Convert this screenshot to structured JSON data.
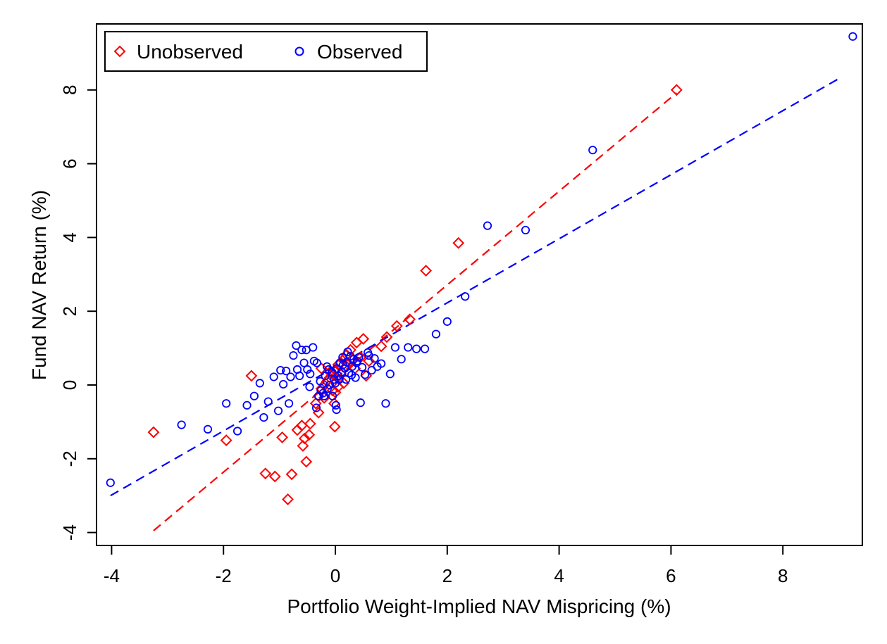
{
  "chart_data": {
    "type": "scatter",
    "title": "",
    "xlabel": "Portfolio Weight-Implied NAV Mispricing (%)",
    "ylabel": "Fund NAV Return (%)",
    "xlim": [
      -4.3,
      9.5
    ],
    "ylim": [
      -4.35,
      9.75
    ],
    "x_ticks": [
      -4,
      -2,
      0,
      2,
      4,
      6,
      8
    ],
    "y_ticks": [
      -4,
      -2,
      0,
      2,
      4,
      6,
      8
    ],
    "x_tick_labels": [
      "-4",
      "-2",
      "0",
      "2",
      "4",
      "6",
      "8"
    ],
    "y_tick_labels": [
      "-4",
      "-2",
      "0",
      "2",
      "4",
      "6",
      "8"
    ],
    "grid": false,
    "legend": {
      "placement": "top-left",
      "entries": [
        "Unobserved",
        "Observed"
      ]
    },
    "series": [
      {
        "name": "Unobserved",
        "color": "#ff0000",
        "marker": "diamond",
        "points": [
          [
            6.1,
            8.0
          ],
          [
            2.2,
            3.85
          ],
          [
            1.62,
            3.1
          ],
          [
            1.33,
            1.78
          ],
          [
            1.1,
            1.6
          ],
          [
            0.92,
            1.3
          ],
          [
            0.82,
            1.05
          ],
          [
            0.5,
            1.25
          ],
          [
            0.38,
            1.15
          ],
          [
            0.27,
            0.95
          ],
          [
            0.2,
            0.82
          ],
          [
            0.15,
            0.7
          ],
          [
            0.1,
            0.6
          ],
          [
            0.05,
            0.55
          ],
          [
            0.0,
            0.4
          ],
          [
            -0.05,
            0.3
          ],
          [
            -0.1,
            0.2
          ],
          [
            -0.15,
            0.1
          ],
          [
            -0.2,
            0.0
          ],
          [
            -0.25,
            -0.1
          ],
          [
            0.03,
            0.2
          ],
          [
            0.1,
            0.3
          ],
          [
            0.2,
            0.5
          ],
          [
            0.3,
            0.7
          ],
          [
            -0.3,
            -0.3
          ],
          [
            0.05,
            -0.05
          ],
          [
            -0.05,
            -0.15
          ],
          [
            0.0,
            -0.2
          ],
          [
            0.55,
            0.25
          ],
          [
            -0.02,
            -0.5
          ],
          [
            -0.35,
            -0.5
          ],
          [
            -0.3,
            -0.75
          ],
          [
            -0.01,
            -1.13
          ],
          [
            -0.45,
            -1.05
          ],
          [
            -0.47,
            -1.35
          ],
          [
            -0.6,
            -1.1
          ],
          [
            -0.55,
            -1.45
          ],
          [
            -0.58,
            -1.65
          ],
          [
            -0.52,
            -2.08
          ],
          [
            -0.68,
            -1.22
          ],
          [
            -0.95,
            -1.42
          ],
          [
            -1.5,
            0.25
          ],
          [
            -1.95,
            -1.5
          ],
          [
            -3.25,
            -1.28
          ],
          [
            -1.25,
            -2.4
          ],
          [
            -1.08,
            -2.48
          ],
          [
            -0.78,
            -2.42
          ],
          [
            -0.85,
            -3.1
          ],
          [
            -0.25,
            0.45
          ],
          [
            0.15,
            0.05
          ],
          [
            0.35,
            0.45
          ],
          [
            -0.1,
            0.35
          ],
          [
            0.45,
            0.75
          ],
          [
            0.6,
            0.65
          ],
          [
            -0.2,
            -0.35
          ]
        ]
      },
      {
        "name": "Observed",
        "color": "#0000ff",
        "marker": "circle",
        "points": [
          [
            9.25,
            9.45
          ],
          [
            4.6,
            6.37
          ],
          [
            3.4,
            4.2
          ],
          [
            2.72,
            4.32
          ],
          [
            2.32,
            2.4
          ],
          [
            2.0,
            1.72
          ],
          [
            1.8,
            1.38
          ],
          [
            1.6,
            0.98
          ],
          [
            1.45,
            0.98
          ],
          [
            1.3,
            1.02
          ],
          [
            1.18,
            0.7
          ],
          [
            1.07,
            1.02
          ],
          [
            0.98,
            0.3
          ],
          [
            0.9,
            -0.5
          ],
          [
            0.82,
            0.58
          ],
          [
            0.75,
            0.5
          ],
          [
            0.7,
            0.72
          ],
          [
            0.65,
            0.4
          ],
          [
            0.58,
            0.88
          ],
          [
            0.53,
            0.28
          ],
          [
            0.48,
            0.48
          ],
          [
            0.45,
            -0.48
          ],
          [
            0.42,
            0.75
          ],
          [
            0.38,
            0.6
          ],
          [
            0.33,
            0.7
          ],
          [
            0.3,
            0.5
          ],
          [
            0.27,
            0.78
          ],
          [
            0.24,
            0.32
          ],
          [
            0.2,
            0.62
          ],
          [
            0.17,
            0.45
          ],
          [
            0.14,
            0.55
          ],
          [
            0.11,
            0.35
          ],
          [
            0.08,
            0.6
          ],
          [
            0.05,
            0.25
          ],
          [
            0.02,
            0.45
          ],
          [
            0.01,
            -0.55
          ],
          [
            0.02,
            -0.67
          ],
          [
            -0.02,
            0.15
          ],
          [
            -0.06,
            0.35
          ],
          [
            -0.1,
            0.0
          ],
          [
            -0.14,
            -0.1
          ],
          [
            -0.18,
            0.25
          ],
          [
            -0.22,
            -0.22
          ],
          [
            -0.26,
            -0.15
          ],
          [
            -0.3,
            -0.3
          ],
          [
            -0.34,
            -0.62
          ],
          [
            -0.38,
            0.65
          ],
          [
            -0.4,
            1.02
          ],
          [
            -0.45,
            0.3
          ],
          [
            -0.5,
            0.42
          ],
          [
            -0.52,
            0.95
          ],
          [
            -0.56,
            0.6
          ],
          [
            -0.6,
            0.95
          ],
          [
            -0.64,
            0.25
          ],
          [
            -0.68,
            0.42
          ],
          [
            -0.7,
            1.07
          ],
          [
            -0.75,
            0.8
          ],
          [
            -0.8,
            0.22
          ],
          [
            -0.83,
            -0.5
          ],
          [
            -0.88,
            0.38
          ],
          [
            -0.93,
            0.02
          ],
          [
            -0.98,
            0.4
          ],
          [
            -1.02,
            -0.7
          ],
          [
            -1.1,
            0.22
          ],
          [
            -1.2,
            -0.45
          ],
          [
            -1.28,
            -0.88
          ],
          [
            -1.35,
            0.05
          ],
          [
            -1.45,
            -0.3
          ],
          [
            -1.58,
            -0.55
          ],
          [
            -1.75,
            -1.25
          ],
          [
            -1.95,
            -0.5
          ],
          [
            -2.28,
            -1.2
          ],
          [
            -2.75,
            -1.08
          ],
          [
            -4.02,
            -2.65
          ],
          [
            -0.15,
            0.5
          ],
          [
            -0.05,
            -0.3
          ],
          [
            0.07,
            0.15
          ],
          [
            0.22,
            0.9
          ],
          [
            0.36,
            0.2
          ],
          [
            -0.27,
            0.1
          ],
          [
            -0.46,
            -0.05
          ],
          [
            0.0,
            0.05
          ],
          [
            0.13,
            0.75
          ],
          [
            -0.12,
            0.42
          ],
          [
            0.29,
            0.27
          ],
          [
            -0.2,
            -0.3
          ],
          [
            0.6,
            0.8
          ],
          [
            -0.33,
            0.6
          ],
          [
            0.19,
            0.15
          ],
          [
            0.39,
            0.65
          ]
        ]
      }
    ],
    "fit_lines": [
      {
        "name": "Unobserved",
        "color": "#ff0000",
        "x": [
          -3.25,
          6.1
        ],
        "y": [
          -3.95,
          7.92
        ]
      },
      {
        "name": "Observed",
        "color": "#0000ff",
        "x": [
          -4.02,
          9.05
        ],
        "y": [
          -3.0,
          8.35
        ]
      }
    ]
  }
}
